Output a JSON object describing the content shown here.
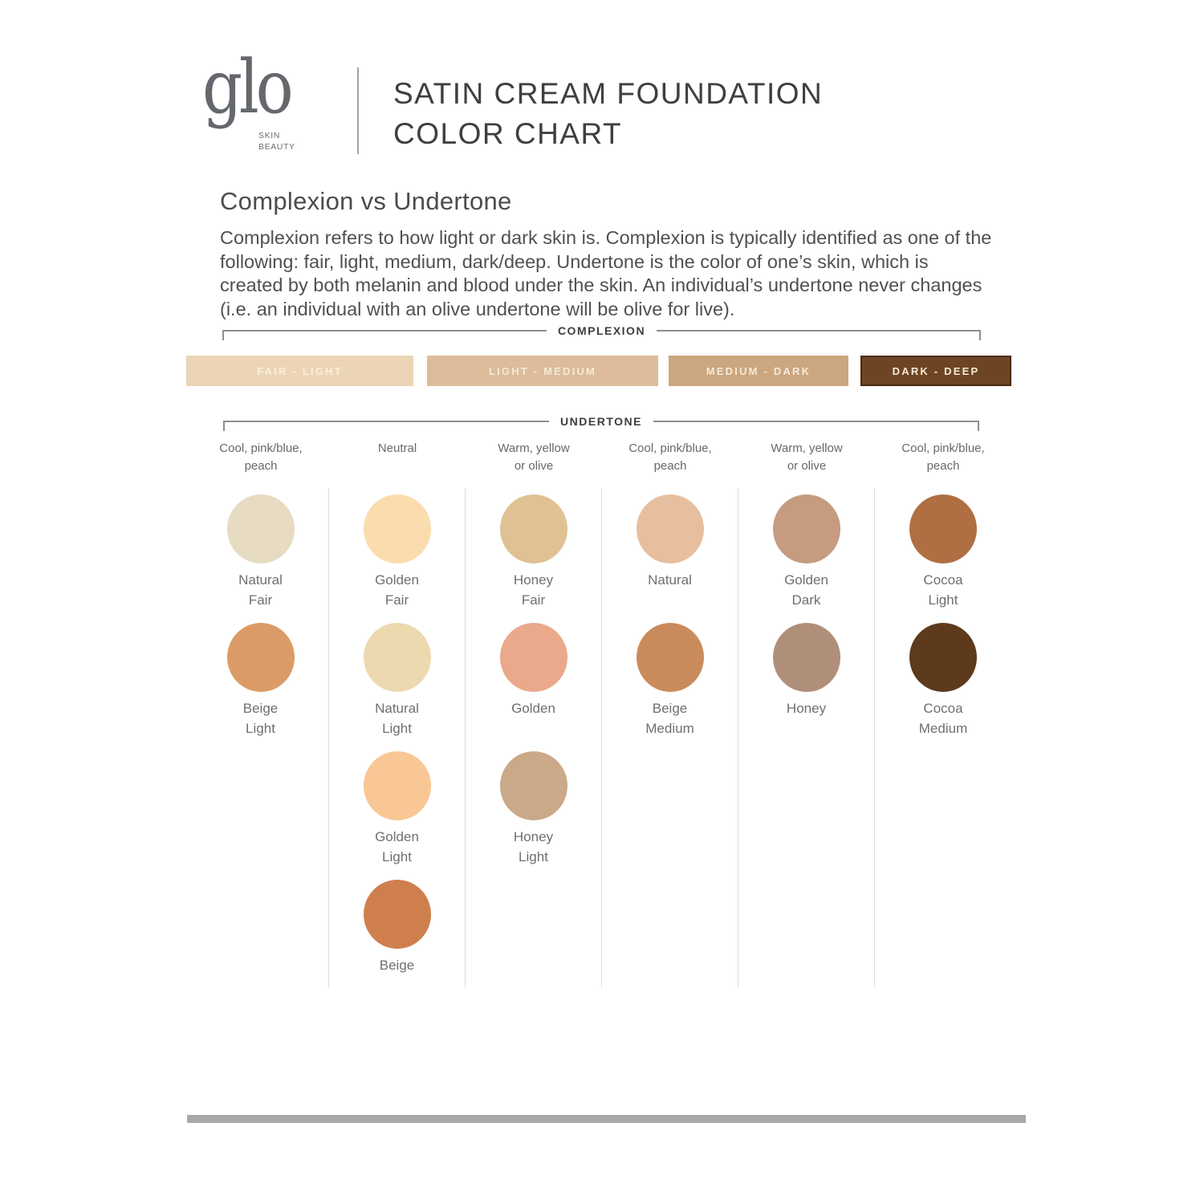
{
  "brand": {
    "logo_text": "glo",
    "logo_sub": "SKIN\nBEAUTY"
  },
  "header": {
    "title_line1": "SATIN CREAM FOUNDATION",
    "title_line2": "COLOR CHART"
  },
  "intro": {
    "heading": "Complexion vs Undertone",
    "body": "Complexion refers to how light or dark skin is. Complexion is typically identified as one of the\nfollowing: fair, light, medium, dark/deep. Undertone is the color of one’s skin, which is\ncreated by both melanin and blood under the skin. An individual’s undertone never changes\n(i.e. an individual with an olive undertone will be olive for live)."
  },
  "complexion": {
    "label": "COMPLEXION",
    "bands": [
      {
        "label": "FAIR - LIGHT",
        "color": "#ecd5b5",
        "text_color": "#f9f0dc"
      },
      {
        "label": "LIGHT - MEDIUM",
        "color": "#dcbc9a",
        "text_color": "#f5ead6"
      },
      {
        "label": "MEDIUM - DARK",
        "color": "#cca67f",
        "text_color": "#f4ebda"
      },
      {
        "label": "DARK - DEEP",
        "color": "#6e4524",
        "text_color": "#f5ecd9"
      }
    ]
  },
  "undertone": {
    "label": "UNDERTONE",
    "columns": [
      "Cool, pink/blue,\npeach",
      "Neutral",
      "Warm, yellow\nor olive",
      "Cool, pink/blue,\npeach",
      "Warm, yellow\nor olive",
      "Cool, pink/blue,\npeach"
    ]
  },
  "shades": {
    "columns": [
      {
        "items": [
          {
            "name": "Natural\nFair",
            "color": "#e7dbc1"
          },
          {
            "name": "Beige\nLight",
            "color": "#dc9b66"
          }
        ]
      },
      {
        "items": [
          {
            "name": "Golden\nFair",
            "color": "#fadcae"
          },
          {
            "name": "Natural\nLight",
            "color": "#edd9b0"
          },
          {
            "name": "Golden\nLight",
            "color": "#f8c795"
          },
          {
            "name": "Beige",
            "color": "#cf7f4e"
          }
        ]
      },
      {
        "items": [
          {
            "name": "Honey\nFair",
            "color": "#e0c193"
          },
          {
            "name": "Golden",
            "color": "#e9a98a"
          },
          {
            "name": "Honey\nLight",
            "color": "#c9a987"
          }
        ]
      },
      {
        "items": [
          {
            "name": "Natural",
            "color": "#e7bf9f"
          },
          {
            "name": "Beige\nMedium",
            "color": "#ca8b5c"
          }
        ]
      },
      {
        "items": [
          {
            "name": "Golden\nDark",
            "color": "#c69b80"
          },
          {
            "name": "Honey",
            "color": "#b08f7a"
          }
        ]
      },
      {
        "items": [
          {
            "name": "Cocoa\nLight",
            "color": "#b06f42"
          },
          {
            "name": "Cocoa\nMedium",
            "color": "#5e3a1c"
          }
        ]
      }
    ]
  }
}
